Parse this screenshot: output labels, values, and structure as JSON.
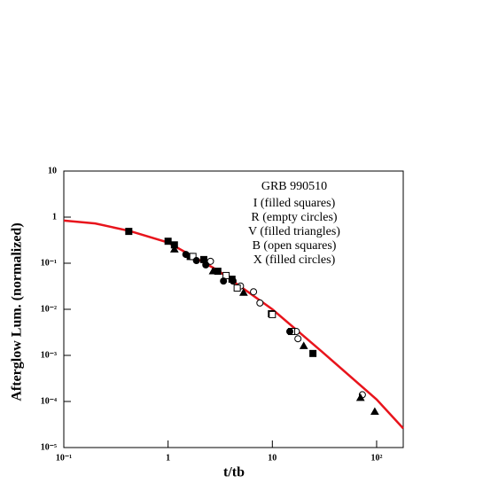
{
  "chart_data": {
    "type": "scatter",
    "annotation": "GRB 990510",
    "xlabel": "t/tb",
    "ylabel": "Afterglow Lum. (normalized)",
    "xscale": "log",
    "yscale": "log",
    "xlim": [
      0.1,
      180
    ],
    "ylim": [
      1e-05,
      10
    ],
    "xticks": [
      {
        "value": 0.1,
        "label": "10⁻¹"
      },
      1,
      10,
      {
        "value": 100,
        "label": "10²"
      }
    ],
    "yticks": [
      {
        "value": 1e-05,
        "label": "10⁻⁵"
      },
      {
        "value": 0.0001,
        "label": "10⁻⁴"
      },
      {
        "value": 0.001,
        "label": "10⁻³"
      },
      {
        "value": 0.01,
        "label": "10⁻²"
      },
      {
        "value": 0.1,
        "label": "10⁻¹"
      },
      1,
      10
    ],
    "series": [
      {
        "name": "I (filled squares)",
        "marker": "square",
        "filled": true,
        "color": "#000000",
        "x": [
          0.42,
          1.0,
          1.15,
          1.63,
          2.2,
          3.0,
          4.1,
          9.8,
          24.5
        ],
        "y": [
          0.49,
          0.3,
          0.25,
          0.14,
          0.12,
          0.067,
          0.045,
          0.008,
          0.0011
        ]
      },
      {
        "name": "R (empty circles)",
        "marker": "circle",
        "filled": false,
        "color": "#000000",
        "x": [
          2.55,
          4.95,
          6.6,
          7.6,
          17,
          17.6,
          73
        ],
        "y": [
          0.11,
          0.032,
          0.024,
          0.0137,
          0.0033,
          0.0023,
          0.00014
        ]
      },
      {
        "name": "V (filled triangles)",
        "marker": "triangle",
        "filled": true,
        "color": "#000000",
        "x": [
          1.15,
          2.7,
          5.3,
          20,
          70,
          96
        ],
        "y": [
          0.2,
          0.067,
          0.023,
          0.0016,
          0.00012,
          6e-05
        ]
      },
      {
        "name": "B (open squares)",
        "marker": "square",
        "filled": false,
        "color": "#000000",
        "x": [
          1.73,
          3.6,
          4.6,
          10,
          15.3
        ],
        "y": [
          0.14,
          0.054,
          0.029,
          0.0077,
          0.0033
        ]
      },
      {
        "name": "X (filled circles)",
        "marker": "circle",
        "filled": true,
        "color": "#000000",
        "x": [
          1.48,
          1.87,
          2.3,
          3.4,
          4.2,
          14.7
        ],
        "y": [
          0.155,
          0.114,
          0.092,
          0.041,
          0.041,
          0.0033
        ]
      }
    ],
    "curve": {
      "color": "#e8141c",
      "x": [
        0.1,
        0.2,
        0.43,
        1,
        3,
        10,
        30,
        100,
        180
      ],
      "y": [
        0.84,
        0.73,
        0.5,
        0.28,
        0.07,
        0.01,
        0.0012,
        0.00011,
        2.6e-05
      ]
    }
  }
}
